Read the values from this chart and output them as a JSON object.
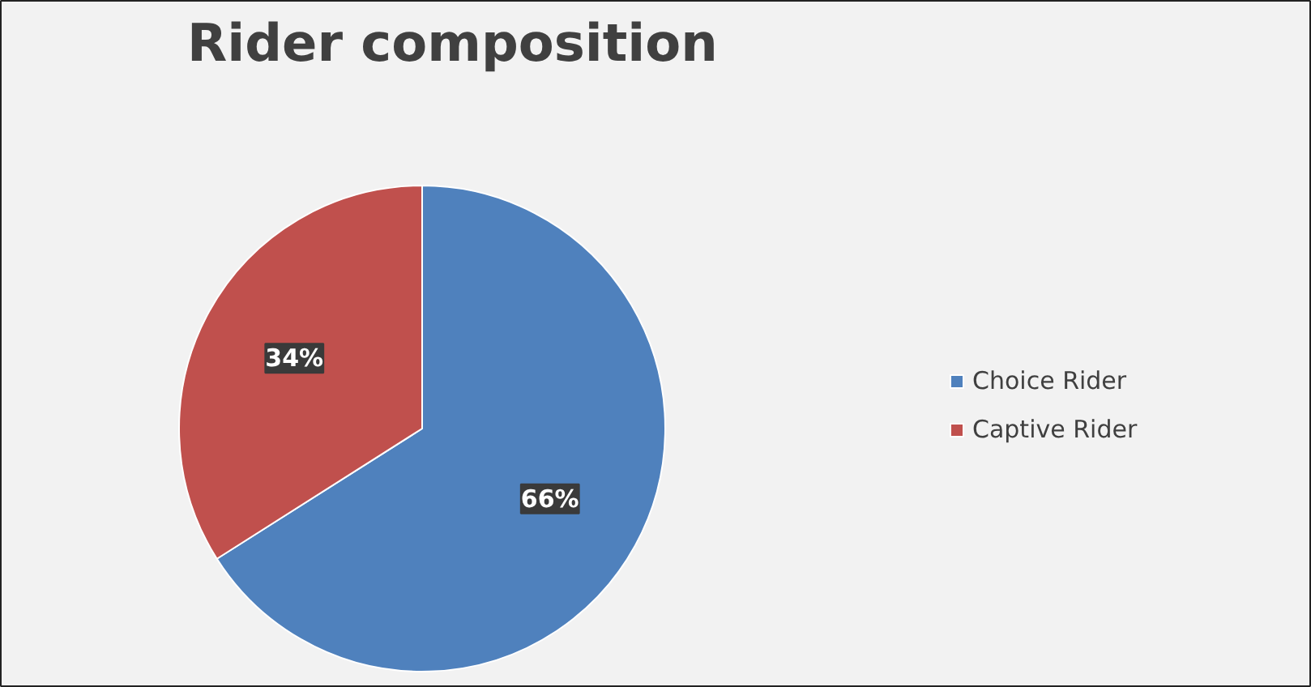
{
  "chart_data": {
    "type": "pie",
    "title": "Rider composition",
    "categories": [
      "Choice Rider",
      "Captive Rider"
    ],
    "values": [
      66,
      34
    ],
    "colors": [
      "#4f81bd",
      "#c0504d"
    ],
    "value_labels": [
      "66%",
      "34%"
    ],
    "legend": "right"
  }
}
